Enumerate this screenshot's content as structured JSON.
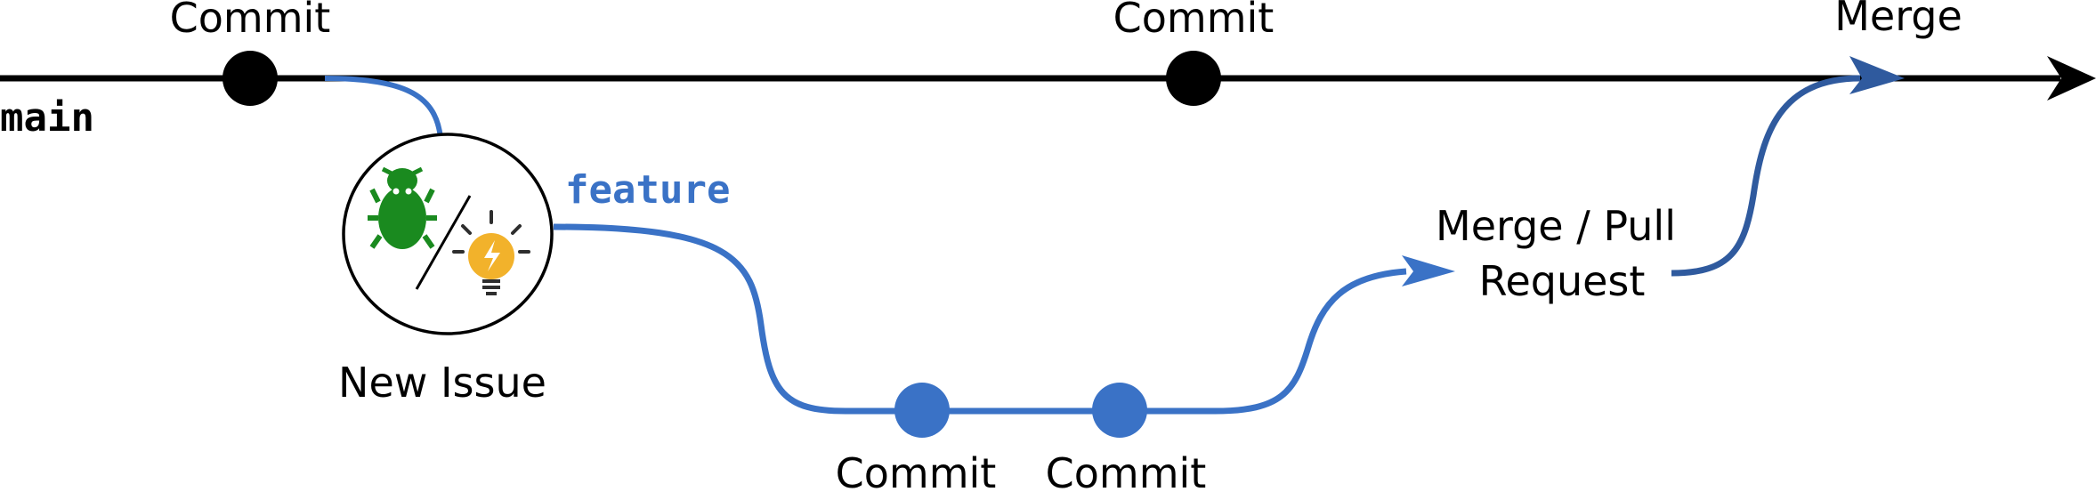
{
  "branches": {
    "main": {
      "label": "main",
      "color": "#000000"
    },
    "feature": {
      "label": "feature",
      "color": "#3a72c6"
    }
  },
  "main_commits": [
    {
      "label": "Commit"
    },
    {
      "label": "Commit"
    }
  ],
  "feature_commits": [
    {
      "label": "Commit"
    },
    {
      "label": "Commit"
    }
  ],
  "issue": {
    "label": "New Issue",
    "icons": [
      "bug-icon",
      "lightbulb-icon"
    ]
  },
  "pull_request": {
    "line1": "Merge / Pull",
    "line2": "Request"
  },
  "merge": {
    "label": "Merge",
    "color": "#2f5a9e"
  },
  "colors": {
    "bug": "#1a8a1f",
    "bulb": "#f2b22b"
  }
}
